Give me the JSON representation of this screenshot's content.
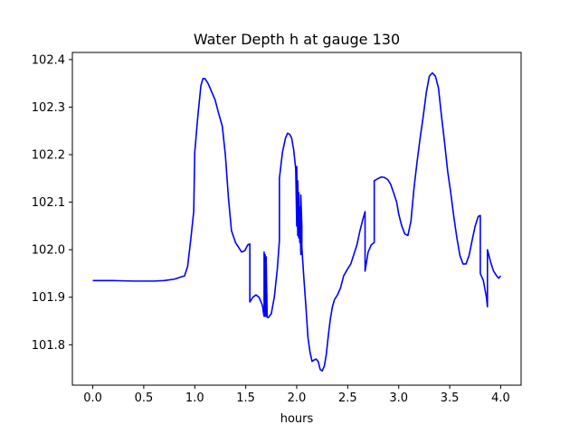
{
  "chart_data": {
    "type": "line",
    "title": "Water Depth h at gauge 130",
    "xlabel": "hours",
    "ylabel": "",
    "xlim": [
      -0.2,
      4.2
    ],
    "ylim": [
      101.715,
      102.415
    ],
    "xticks": [
      0.0,
      0.5,
      1.0,
      1.5,
      2.0,
      2.5,
      3.0,
      3.5,
      4.0
    ],
    "xtick_labels": [
      "0.0",
      "0.5",
      "1.0",
      "1.5",
      "2.0",
      "2.5",
      "3.0",
      "3.5",
      "4.0"
    ],
    "yticks": [
      101.8,
      101.9,
      102.0,
      102.1,
      102.2,
      102.3,
      102.4
    ],
    "ytick_labels": [
      "101.8",
      "101.9",
      "102.0",
      "102.1",
      "102.2",
      "102.3",
      "102.4"
    ],
    "grid": false,
    "series": [
      {
        "color": "#0000ff",
        "x": [
          0.0,
          0.2,
          0.4,
          0.6,
          0.7,
          0.8,
          0.87,
          0.9,
          0.93,
          0.96,
          0.99,
          1.0,
          1.0,
          1.03,
          1.06,
          1.08,
          1.1,
          1.13,
          1.17,
          1.2,
          1.23,
          1.27,
          1.3,
          1.33,
          1.36,
          1.4,
          1.43,
          1.46,
          1.49,
          1.52,
          1.54,
          1.54,
          1.57,
          1.6,
          1.63,
          1.66,
          1.67,
          1.67,
          1.68,
          1.68,
          1.69,
          1.69,
          1.7,
          1.7,
          1.71,
          1.71,
          1.72,
          1.75,
          1.78,
          1.81,
          1.83,
          1.83,
          1.86,
          1.89,
          1.91,
          1.93,
          1.95,
          1.97,
          1.99,
          2.0,
          2.0,
          2.01,
          2.01,
          2.02,
          2.02,
          2.03,
          2.03,
          2.04,
          2.04,
          2.05,
          2.05,
          2.07,
          2.09,
          2.11,
          2.13,
          2.15,
          2.17,
          2.19,
          2.21,
          2.23,
          2.25,
          2.27,
          2.29,
          2.31,
          2.33,
          2.35,
          2.37,
          2.4,
          2.43,
          2.46,
          2.5,
          2.53,
          2.56,
          2.59,
          2.62,
          2.65,
          2.67,
          2.67,
          2.7,
          2.73,
          2.76,
          2.76,
          2.8,
          2.83,
          2.86,
          2.89,
          2.92,
          2.95,
          2.98,
          3.0,
          3.03,
          3.06,
          3.09,
          3.12,
          3.15,
          3.18,
          3.21,
          3.24,
          3.27,
          3.3,
          3.33,
          3.36,
          3.39,
          3.42,
          3.45,
          3.48,
          3.51,
          3.54,
          3.57,
          3.6,
          3.63,
          3.66,
          3.69,
          3.72,
          3.75,
          3.78,
          3.8,
          3.8,
          3.83,
          3.86,
          3.87,
          3.87,
          3.9,
          3.93,
          3.96,
          3.98,
          4.0
        ],
        "y": [
          101.935,
          101.935,
          101.934,
          101.934,
          101.935,
          101.938,
          101.943,
          101.945,
          101.965,
          102.02,
          102.08,
          102.205,
          102.205,
          102.28,
          102.345,
          102.36,
          102.36,
          102.35,
          102.33,
          102.315,
          102.29,
          102.26,
          102.2,
          102.11,
          102.04,
          102.015,
          102.005,
          101.995,
          101.998,
          102.01,
          102.012,
          101.89,
          101.9,
          101.905,
          101.9,
          101.885,
          101.875,
          101.872,
          101.86,
          101.995,
          101.86,
          101.99,
          101.86,
          101.985,
          101.858,
          101.858,
          101.857,
          101.865,
          101.9,
          101.96,
          102.02,
          102.15,
          102.205,
          102.235,
          102.245,
          102.243,
          102.235,
          102.21,
          102.17,
          102.05,
          102.175,
          102.03,
          102.145,
          102.025,
          102.12,
          102.015,
          102.09,
          101.99,
          102.115,
          102.05,
          102.005,
          101.94,
          101.88,
          101.815,
          101.785,
          101.765,
          101.768,
          101.77,
          101.765,
          101.748,
          101.745,
          101.755,
          101.78,
          101.82,
          101.855,
          101.88,
          101.895,
          101.905,
          101.92,
          101.945,
          101.96,
          101.97,
          101.99,
          102.01,
          102.04,
          102.065,
          102.08,
          101.955,
          101.995,
          102.01,
          102.015,
          102.145,
          102.15,
          102.153,
          102.152,
          102.148,
          102.138,
          102.12,
          102.1,
          102.075,
          102.05,
          102.033,
          102.03,
          102.06,
          102.13,
          102.185,
          102.235,
          102.28,
          102.33,
          102.365,
          102.372,
          102.365,
          102.34,
          102.28,
          102.225,
          102.165,
          102.12,
          102.07,
          102.025,
          101.988,
          101.97,
          101.97,
          101.988,
          102.02,
          102.05,
          102.07,
          102.072,
          101.95,
          101.935,
          101.9,
          101.88,
          102.0,
          101.975,
          101.955,
          101.945,
          101.94,
          101.945
        ]
      }
    ]
  }
}
